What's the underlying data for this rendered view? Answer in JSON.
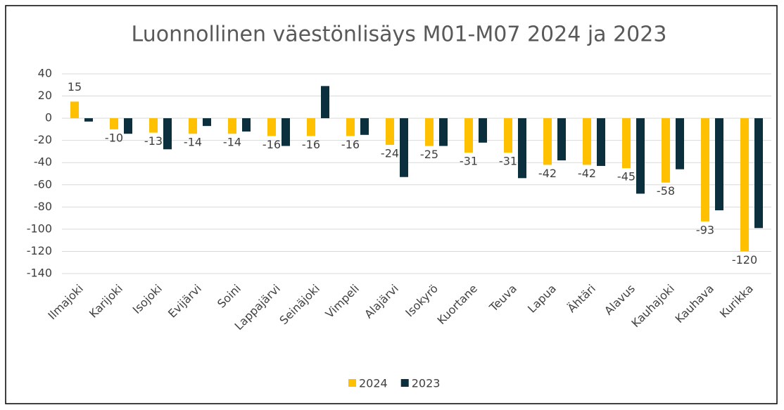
{
  "chart_data": {
    "type": "bar",
    "title": "Luonnollinen väestönlisäys M01-M07 2024 ja 2023",
    "categories": [
      "Ilmajoki",
      "Karijoki",
      "Isojoki",
      "Evijärvi",
      "Soini",
      "Lappajärvi",
      "Seinäjoki",
      "Vimpeli",
      "Alajärvi",
      "Isokyrö",
      "Kuortane",
      "Teuva",
      "Lapua",
      "Ähtäri",
      "Alavus",
      "Kauhajoki",
      "Kauhava",
      "Kurikka"
    ],
    "series": [
      {
        "name": "2024",
        "color": "#ffc000",
        "values": [
          15,
          -10,
          -13,
          -14,
          -14,
          -16,
          -16,
          -16,
          -24,
          -25,
          -31,
          -31,
          -42,
          -42,
          -45,
          -58,
          -93,
          -120
        ],
        "data_labels": true
      },
      {
        "name": "2023",
        "color": "#0b2f3c",
        "values": [
          -3,
          -14,
          -28,
          -7,
          -12,
          -25,
          29,
          -15,
          -53,
          -25,
          -22,
          -54,
          -38,
          -43,
          -68,
          -46,
          -83,
          -99
        ],
        "data_labels": false
      }
    ],
    "ylim": [
      -140,
      40
    ],
    "yticks": [
      -140,
      -120,
      -100,
      -80,
      -60,
      -40,
      -20,
      0,
      20,
      40
    ],
    "grid": true,
    "legend": "bottom"
  }
}
